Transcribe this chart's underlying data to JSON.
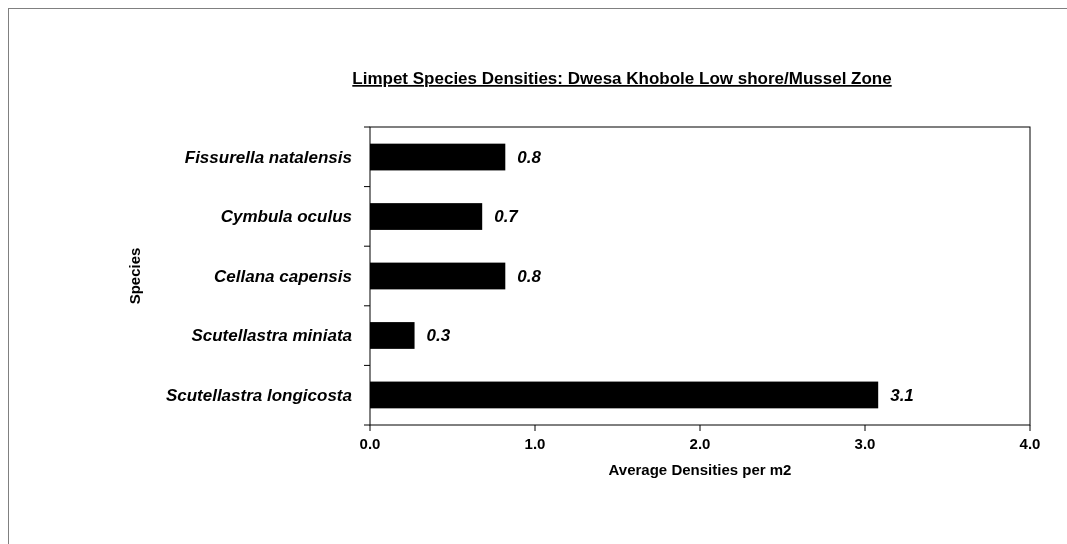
{
  "chart_data": {
    "type": "bar",
    "orientation": "horizontal",
    "title": "Limpet Species Densities: Dwesa Khobole Low shore/Mussel Zone",
    "xlabel": "Average Densities  per m2",
    "ylabel": "Species",
    "categories": [
      "Fissurella natalensis",
      "Cymbula oculus",
      "Cellana capensis",
      "Scutellastra miniata",
      "Scutellastra longicosta"
    ],
    "values": [
      0.82,
      0.68,
      0.82,
      0.27,
      3.08
    ],
    "value_labels": [
      "0.8",
      "0.7",
      "0.8",
      "0.3",
      "3.1"
    ],
    "color": "#000000",
    "xlim": [
      0,
      4
    ],
    "xticks": [
      {
        "value": 0,
        "label": "0.0"
      },
      {
        "value": 1,
        "label": "1.0"
      },
      {
        "value": 2,
        "label": "2.0"
      },
      {
        "value": 3,
        "label": "3.0"
      },
      {
        "value": 4,
        "label": "4.0"
      }
    ],
    "grid": false
  }
}
